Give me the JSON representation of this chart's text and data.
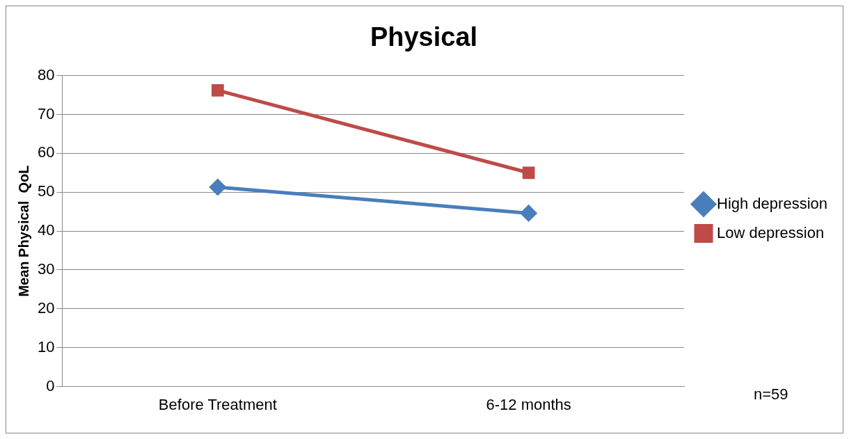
{
  "chart_data": {
    "type": "line",
    "title": "Physical",
    "ylabel": "Mean Physical  QoL",
    "categories": [
      "Before Treatment",
      "6-12 months"
    ],
    "series": [
      {
        "name": "High depression",
        "color": "#4a7ebb",
        "values": [
          51.3,
          44.6
        ],
        "marker": "diamond"
      },
      {
        "name": "Low depression",
        "color": "#be4b48",
        "values": [
          76.2,
          55.0
        ],
        "marker": "square"
      }
    ],
    "ylim": [
      0,
      80
    ],
    "yticks": [
      0,
      10,
      20,
      30,
      40,
      50,
      60,
      70,
      80
    ],
    "grid": "y",
    "legend": "right",
    "line_style": "solid",
    "annotations": [
      "n=59"
    ]
  }
}
